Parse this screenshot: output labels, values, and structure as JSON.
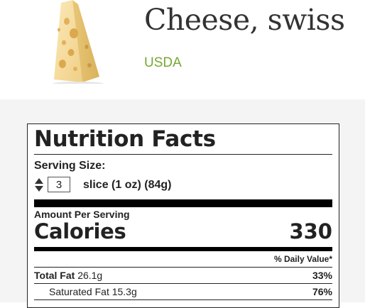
{
  "food": {
    "title": "Cheese, swiss",
    "source": "USDA",
    "image_icon": "swiss-cheese-wedge"
  },
  "label": {
    "title": "Nutrition Facts",
    "serving_size_label": "Serving Size:",
    "serving_quantity": "3",
    "serving_unit": "slice (1 oz) (84g)",
    "amount_per_serving": "Amount Per Serving",
    "calories_label": "Calories",
    "calories_value": "330",
    "daily_value_header": "% Daily Value*",
    "rows": [
      {
        "name": "Total Fat",
        "amount": "26.1g",
        "percent": "33%",
        "bold": true
      },
      {
        "name": "Saturated Fat",
        "amount": "15.3g",
        "percent": "76%",
        "bold": false
      }
    ]
  },
  "colors": {
    "accent": "#74a833",
    "band": "#f4f4f4",
    "text": "#222222"
  }
}
